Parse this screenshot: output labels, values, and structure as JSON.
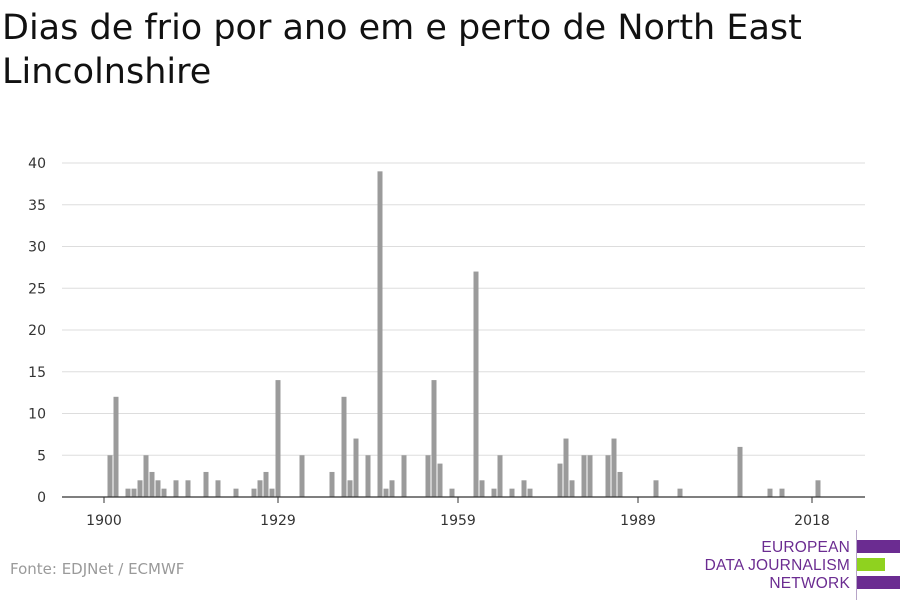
{
  "title": "Dias de frio por ano em e perto de North East Lincolnshire",
  "source": "Fonte: EDJNet / ECMWF",
  "logo": {
    "line1": "EUROPEAN",
    "line2": "DATA JOURNALISM",
    "line3": "NETWORK",
    "colors": {
      "purple": "#6b2c91",
      "green": "#8fd21f"
    }
  },
  "chart_data": {
    "type": "bar",
    "title": "Dias de frio por ano em e perto de North East Lincolnshire",
    "xlabel": "",
    "ylabel": "",
    "xlim": [
      1900,
      2020
    ],
    "ylim": [
      0,
      40
    ],
    "xticks": [
      1900,
      1929,
      1959,
      1989,
      2018
    ],
    "yticks": [
      0,
      5,
      10,
      15,
      20,
      25,
      30,
      35,
      40
    ],
    "grid": true,
    "bar_color": "#9b9b9b",
    "x": [
      1901,
      1902,
      1904,
      1905,
      1906,
      1907,
      1908,
      1909,
      1910,
      1912,
      1914,
      1917,
      1919,
      1922,
      1925,
      1926,
      1927,
      1928,
      1929,
      1933,
      1938,
      1940,
      1941,
      1942,
      1944,
      1946,
      1947,
      1948,
      1950,
      1954,
      1955,
      1956,
      1958,
      1962,
      1963,
      1965,
      1966,
      1968,
      1970,
      1971,
      1976,
      1977,
      1978,
      1980,
      1981,
      1984,
      1985,
      1986,
      1992,
      1996,
      2006,
      2011,
      2013,
      2019
    ],
    "values": [
      5,
      12,
      1,
      1,
      2,
      5,
      3,
      2,
      1,
      2,
      2,
      3,
      2,
      1,
      1,
      2,
      3,
      1,
      14,
      5,
      3,
      12,
      2,
      7,
      5,
      39,
      1,
      2,
      5,
      5,
      14,
      4,
      1,
      27,
      2,
      1,
      5,
      1,
      2,
      1,
      4,
      7,
      2,
      5,
      5,
      5,
      7,
      3,
      2,
      1,
      6,
      1,
      1,
      2
    ]
  }
}
